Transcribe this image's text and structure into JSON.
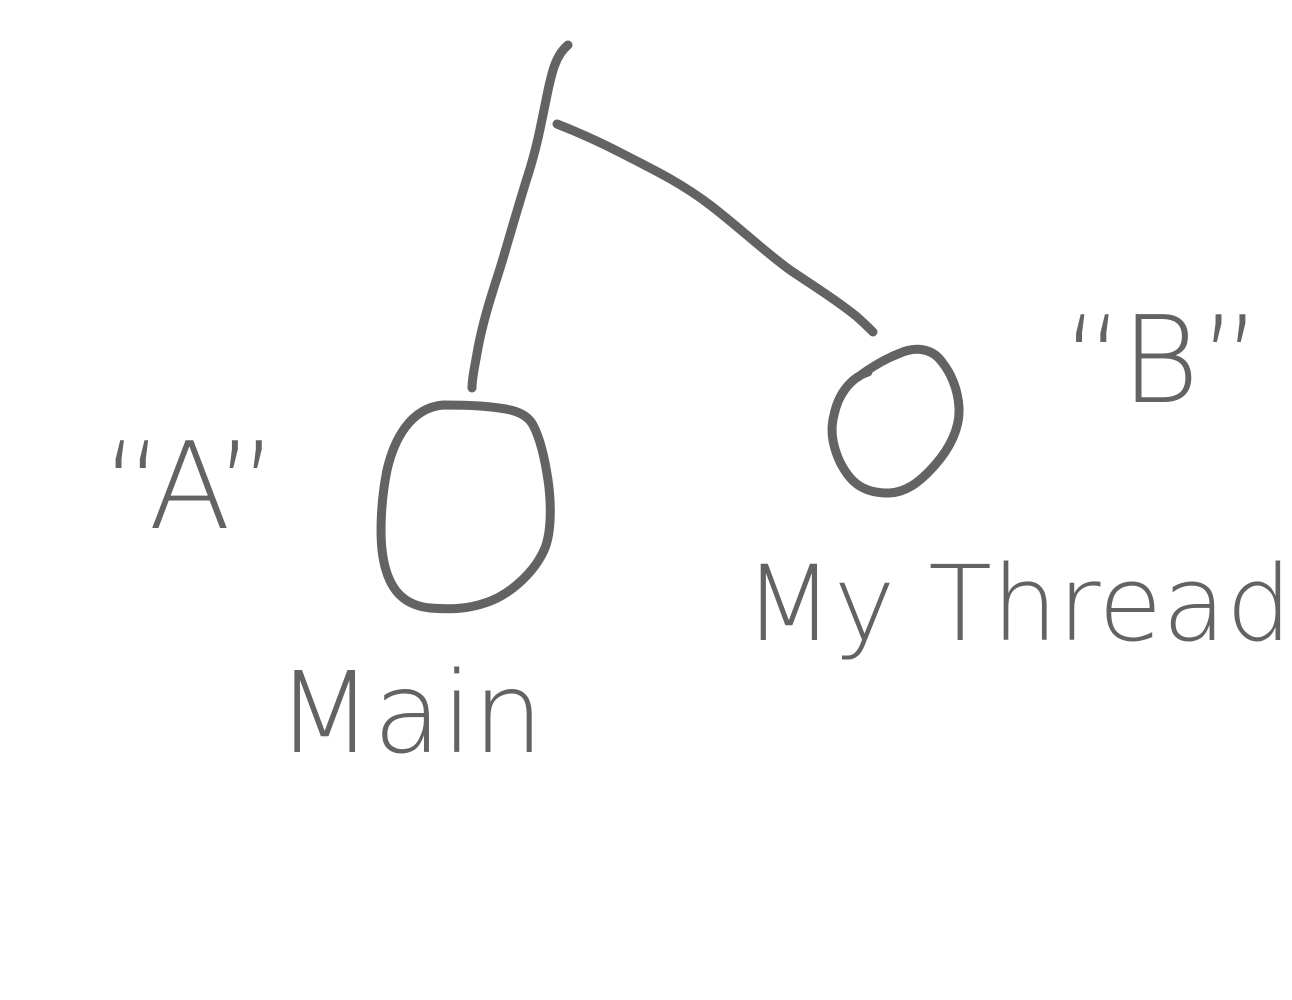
{
  "diagram": {
    "stroke_color": "#636363",
    "background": "#ffffff",
    "nodes": [
      {
        "id": "main",
        "label": "Main",
        "tag": "“A”"
      },
      {
        "id": "mythread",
        "label": "My Thread",
        "tag": "“B”"
      }
    ],
    "edges": [
      {
        "from": "root",
        "to": "main"
      },
      {
        "from": "root",
        "to": "mythread"
      }
    ]
  }
}
